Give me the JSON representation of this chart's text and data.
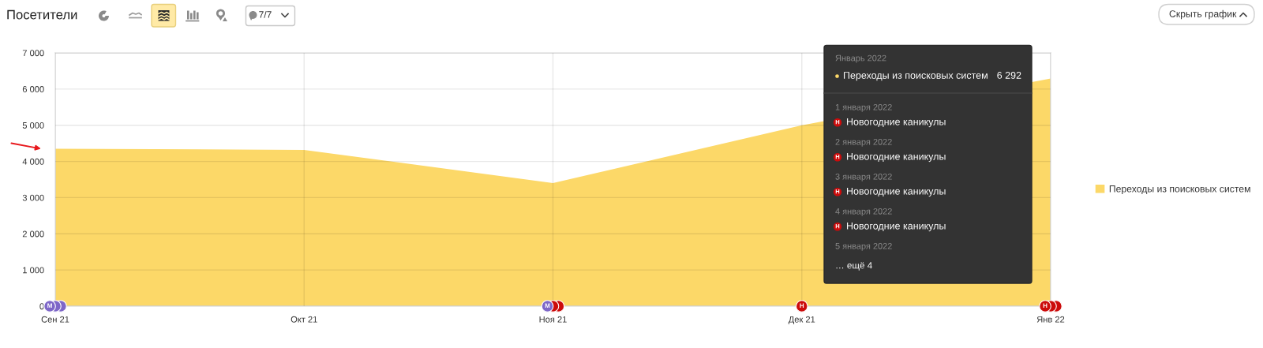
{
  "chart_data": {
    "type": "area",
    "title": "Посетители",
    "categories": [
      "Сен 21",
      "Окт 21",
      "Ноя 21",
      "Дек 21",
      "Янв 22"
    ],
    "series": [
      {
        "name": "Переходы из поисковых систем",
        "color": "#fcd868",
        "values": [
          4350,
          4320,
          3400,
          5000,
          6292
        ]
      }
    ],
    "ylim": [
      0,
      7000
    ],
    "yticks": [
      0,
      {
        "value": 1000,
        "label": "1 000"
      },
      {
        "value": 2000,
        "label": "2 000"
      },
      {
        "value": 3000,
        "label": "3 000"
      },
      {
        "value": 4000,
        "label": "4 000"
      },
      {
        "value": 5000,
        "label": "5 000"
      },
      {
        "value": 6000,
        "label": "6 000"
      },
      {
        "value": 7000,
        "label": "7 000"
      }
    ],
    "grid": true,
    "legend": "right",
    "annotations": [
      "Скрыть график",
      "7/7",
      "Январь 2022",
      "Переходы из поисковых систем",
      "6 292",
      "1 января 2022",
      "Новогодние каникулы",
      "2 января 2022",
      "Новогодние каникулы",
      "3 января 2022",
      "Новогодние каникулы",
      "4 января 2022",
      "Новогодние каникулы",
      "5 января 2022",
      "… ещё 4",
      {
        "text": "М",
        "x": "Сен 21",
        "y": 0
      },
      {
        "text": "М",
        "x": "Ноя 21",
        "y": 0
      },
      {
        "text": "Н",
        "x": "Дек 21",
        "y": 0
      },
      {
        "text": "Н",
        "x": "Янв 22",
        "y": 0
      }
    ]
  }
}
